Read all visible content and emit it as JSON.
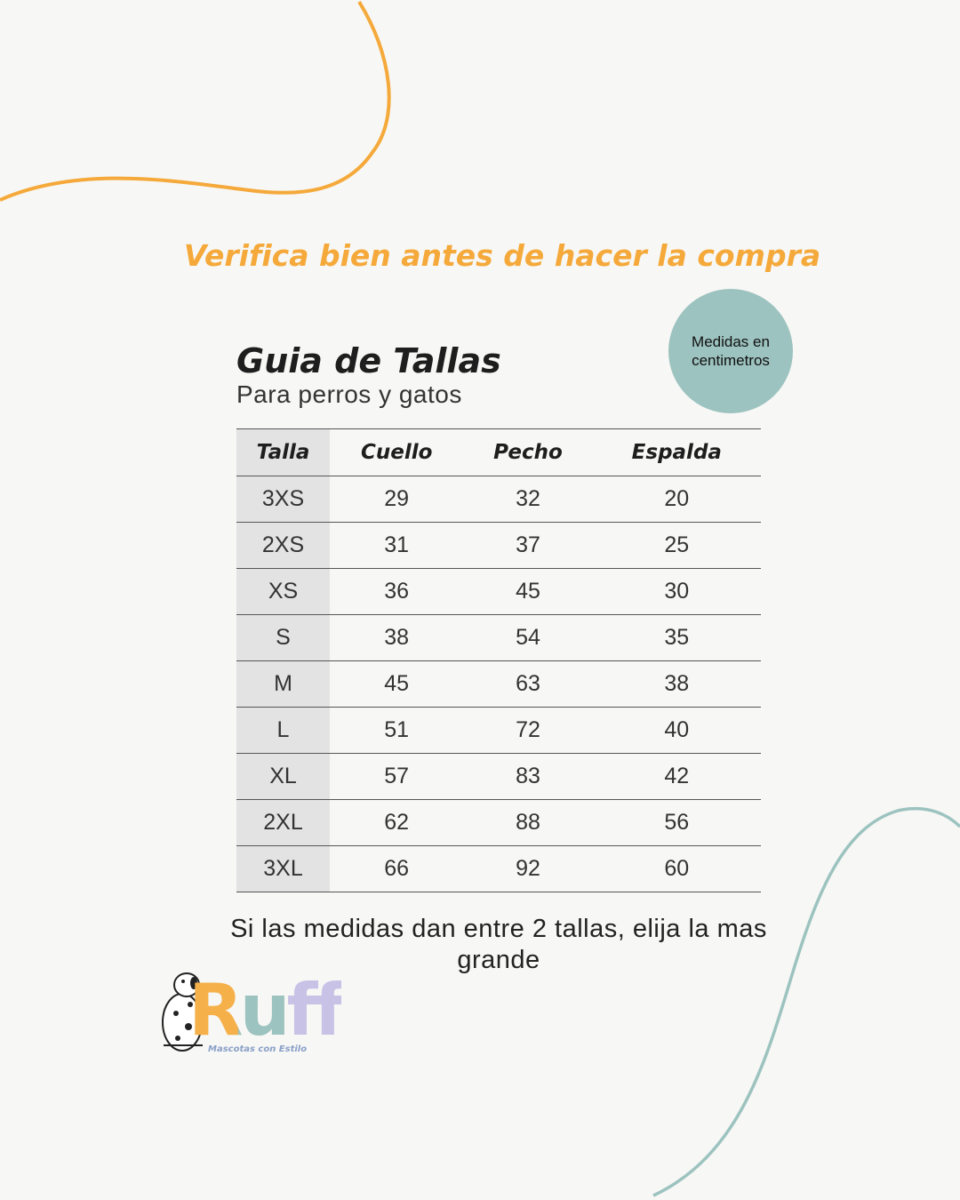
{
  "headline": "Verifica bien antes de hacer la compra",
  "title": "Guia de Tallas",
  "subtitle": "Para perros y gatos",
  "badge": "Medidas en centimetros",
  "table": {
    "headers": [
      "Talla",
      "Cuello",
      "Pecho",
      "Espalda"
    ],
    "rows": [
      [
        "3XS",
        "29",
        "32",
        "20"
      ],
      [
        "2XS",
        "31",
        "37",
        "25"
      ],
      [
        "XS",
        "36",
        "45",
        "30"
      ],
      [
        "S",
        "38",
        "54",
        "35"
      ],
      [
        "M",
        "45",
        "63",
        "38"
      ],
      [
        "L",
        "51",
        "72",
        "40"
      ],
      [
        "XL",
        "57",
        "83",
        "42"
      ],
      [
        "2XL",
        "62",
        "88",
        "56"
      ],
      [
        "3XL",
        "66",
        "92",
        "60"
      ]
    ]
  },
  "footnote": "Si las medidas dan entre 2 tallas, elija la mas grande",
  "logo": {
    "name": "Ruff",
    "tagline": "Mascotas con Estilo"
  }
}
